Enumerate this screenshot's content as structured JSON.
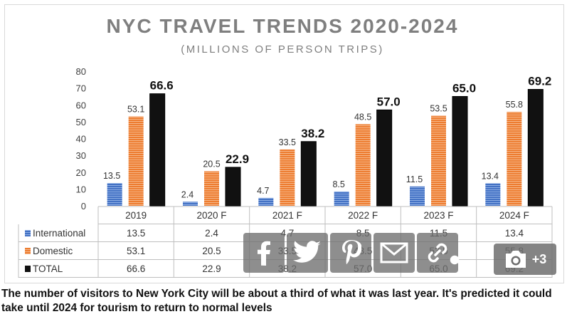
{
  "chart_data": {
    "type": "bar",
    "title": "NYC TRAVEL TRENDS 2020-2024",
    "subtitle": "(MILLIONS OF PERSON TRIPS)",
    "categories": [
      "2019",
      "2020 F",
      "2021 F",
      "2022 F",
      "2023 F",
      "2024 F"
    ],
    "series": [
      {
        "name": "International",
        "values": [
          13.5,
          2.4,
          4.7,
          8.5,
          11.5,
          13.4
        ],
        "color": "#4472c4"
      },
      {
        "name": "Domestic",
        "values": [
          53.1,
          20.5,
          33.5,
          48.5,
          53.5,
          55.8
        ],
        "color": "#ed7d31"
      },
      {
        "name": "TOTAL",
        "values": [
          66.6,
          22.9,
          38.2,
          57.0,
          65.0,
          69.2
        ],
        "color": "#111111"
      }
    ],
    "value_labels": [
      [
        "13.5",
        "2.4",
        "4.7",
        "8.5",
        "11.5",
        "13.4"
      ],
      [
        "53.1",
        "20.5",
        "33.5",
        "48.5",
        "53.5",
        "55.8"
      ],
      [
        "66.6",
        "22.9",
        "38.2",
        "57.0",
        "65.0",
        "69.2"
      ]
    ],
    "table_values": [
      [
        "13.5",
        "2.4",
        "4.7",
        "8.5",
        "11.5",
        "13.4"
      ],
      [
        "53.1",
        "20.5",
        "33.5",
        "48.5",
        "53.5",
        "55.8"
      ],
      [
        "66.6",
        "22.9",
        "38.2",
        "57.0",
        "65.0",
        "69.2"
      ]
    ],
    "ylim": [
      0,
      80
    ],
    "yticks": [
      0,
      10,
      20,
      30,
      40,
      50,
      60,
      70,
      80
    ],
    "grid": false,
    "legend": "data-table"
  },
  "share": {
    "buttons": [
      {
        "id": "facebook",
        "icon": "facebook-icon"
      },
      {
        "id": "twitter",
        "icon": "twitter-icon"
      },
      {
        "id": "pinterest",
        "icon": "pinterest-icon"
      },
      {
        "id": "email",
        "icon": "email-icon"
      },
      {
        "id": "link",
        "icon": "link-icon"
      }
    ],
    "toggle_icon": "share-icon",
    "photo_count": "+3",
    "photo_icon": "camera-icon"
  },
  "caption": "The number of visitors to New York City will be about a third of what it was last year. It's predicted it could take until 2024 for tourism to return to normal levels"
}
